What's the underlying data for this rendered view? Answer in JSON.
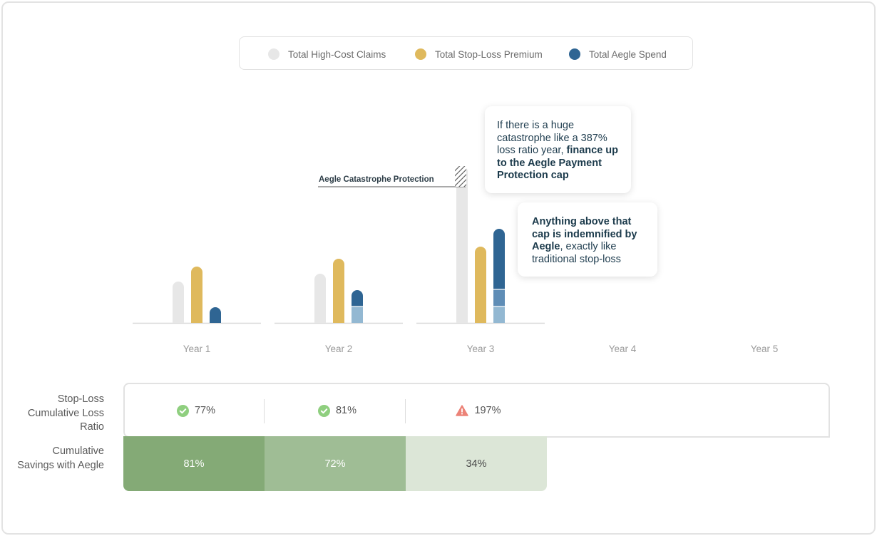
{
  "legend": [
    {
      "label": "Total High-Cost Claims",
      "color": "#e7e7e7"
    },
    {
      "label": "Total Stop-Loss Premium",
      "color": "#dfb95d"
    },
    {
      "label": "Total Aegle Spend",
      "color": "#2f6593"
    }
  ],
  "callouts": {
    "first": {
      "plain": "If there is a huge catastrophe like a 387% loss ratio year, ",
      "bold": "finance up to the Aegle Payment Protection cap"
    },
    "second": {
      "bold": "Anything above that cap is indemnified by Aegle",
      "plain": ", exactly like traditional stop-loss"
    }
  },
  "annotation": "Aegle Catastrophe Protection",
  "chart_data": {
    "type": "bar",
    "categories": [
      "Year 1",
      "Year 2",
      "Year 3",
      "Year 4",
      "Year 5"
    ],
    "series": [
      {
        "name": "Total High-Cost Claims",
        "color": "#e7e7e7",
        "values": [
          58,
          69,
          220,
          null,
          null
        ]
      },
      {
        "name": "Total Stop-Loss Premium",
        "color": "#dfb95d",
        "values": [
          79,
          90,
          107,
          null,
          null
        ]
      },
      {
        "name": "Total Aegle Spend",
        "color": "#2f6593",
        "values": [
          22,
          46,
          132,
          null,
          null
        ],
        "segments": [
          {
            "color": "#2f6593",
            "values": [
              22,
              23,
              85,
              null,
              null
            ]
          },
          {
            "color": "#5f8db6",
            "values": [
              0,
              0,
              24,
              null,
              null
            ]
          },
          {
            "color": "#93b8d2",
            "values": [
              0,
              23,
              23,
              null,
              null
            ]
          }
        ]
      }
    ],
    "annotations": [
      "Aegle Catastrophe Protection"
    ],
    "ylim": [
      0,
      225
    ]
  },
  "loss_ratio": {
    "label": "Stop-Loss Cumulative Loss Ratio",
    "values": [
      {
        "text": "77%",
        "status": "ok"
      },
      {
        "text": "81%",
        "status": "ok"
      },
      {
        "text": "197%",
        "status": "warning"
      }
    ],
    "colors": {
      "ok": "#8fcf7f",
      "warning": "#ec8378"
    }
  },
  "savings": {
    "label": "Cumulative Savings with Aegle",
    "values": [
      {
        "text": "81%",
        "color": "#84aa76",
        "text_color": "#ffffff"
      },
      {
        "text": "72%",
        "color": "#9fbd95",
        "text_color": "#ffffff"
      },
      {
        "text": "34%",
        "color": "#dce6d7",
        "text_color": "#4a4a4a"
      }
    ]
  }
}
